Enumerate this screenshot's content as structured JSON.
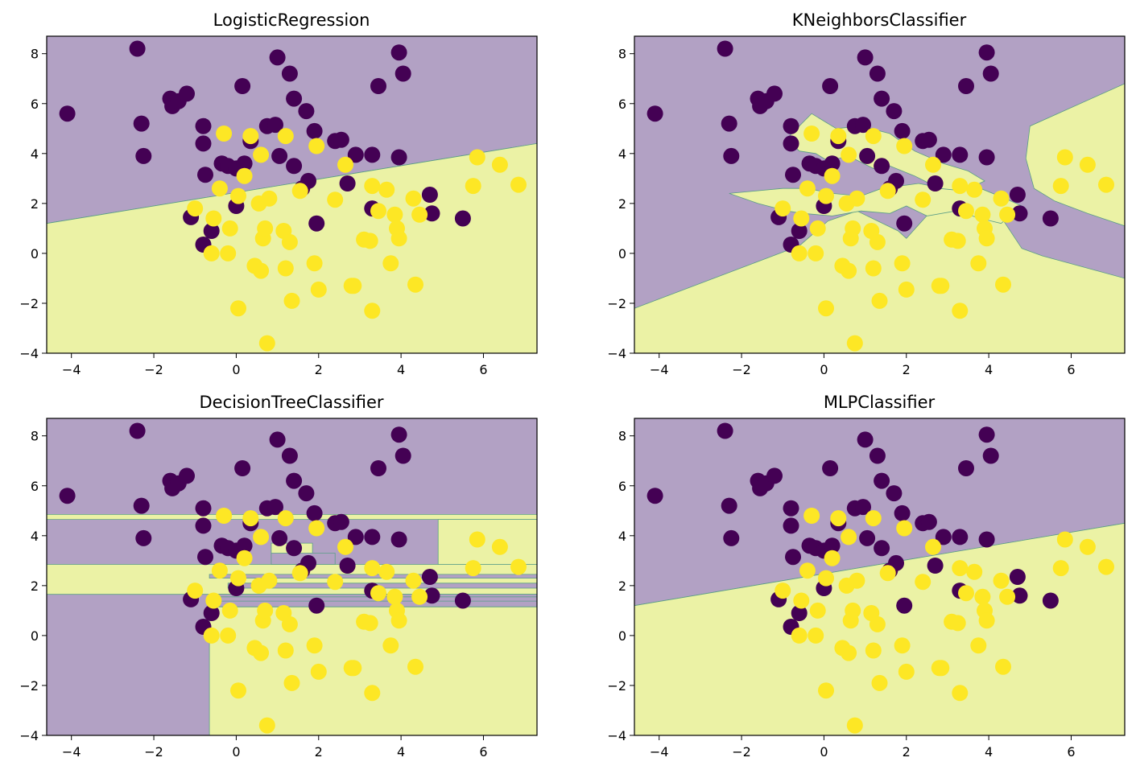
{
  "chart_data": [
    {
      "type": "scatter",
      "title": "LogisticRegression",
      "xlabel": "",
      "ylabel": "",
      "xlim": [
        -4.6,
        7.3
      ],
      "ylim": [
        -4.0,
        8.7
      ],
      "xticks": [
        -4,
        -2,
        0,
        2,
        4,
        6
      ],
      "yticks": [
        -4,
        -2,
        0,
        2,
        4,
        6,
        8
      ],
      "xtick_labels": [
        "−4",
        "−2",
        "0",
        "2",
        "4",
        "6"
      ],
      "ytick_labels": [
        "−4",
        "−2",
        "0",
        "2",
        "4",
        "6",
        "8"
      ],
      "decision_regions": [
        {
          "class": 0,
          "polygon": [
            [
              -4.6,
              1.2
            ],
            [
              7.3,
              4.4
            ],
            [
              7.3,
              8.7
            ],
            [
              -4.6,
              8.7
            ]
          ]
        },
        {
          "class": 1,
          "polygon": [
            [
              -4.6,
              -4.0
            ],
            [
              7.3,
              -4.0
            ],
            [
              7.3,
              4.4
            ],
            [
              -4.6,
              1.2
            ]
          ]
        }
      ]
    },
    {
      "type": "scatter",
      "title": "KNeighborsClassifier",
      "xlabel": "",
      "ylabel": "",
      "xlim": [
        -4.6,
        7.3
      ],
      "ylim": [
        -4.0,
        8.7
      ],
      "xticks": [
        -4,
        -2,
        0,
        2,
        4,
        6
      ],
      "yticks": [
        -4,
        -2,
        0,
        2,
        4,
        6,
        8
      ],
      "xtick_labels": [
        "−4",
        "−2",
        "0",
        "2",
        "4",
        "6"
      ],
      "ytick_labels": [
        "−4",
        "−2",
        "0",
        "2",
        "4",
        "6",
        "8"
      ],
      "decision_regions": [
        {
          "class": 0,
          "polygon": [
            [
              -4.6,
              -4.0
            ],
            [
              7.3,
              -4.0
            ],
            [
              7.3,
              8.7
            ],
            [
              -4.6,
              8.7
            ]
          ]
        },
        {
          "class": 1,
          "polygon": [
            [
              -4.6,
              -4.0
            ],
            [
              7.3,
              -4.0
            ],
            [
              7.3,
              -1.0
            ],
            [
              5.3,
              -0.1
            ],
            [
              4.8,
              0.2
            ],
            [
              4.2,
              1.7
            ],
            [
              3.9,
              2.3
            ],
            [
              3.2,
              2.0
            ],
            [
              2.6,
              1.7
            ],
            [
              2.0,
              0.6
            ],
            [
              1.8,
              0.9
            ],
            [
              0.8,
              1.7
            ],
            [
              0.1,
              1.3
            ],
            [
              -0.6,
              0.3
            ],
            [
              -4.6,
              -2.2
            ]
          ]
        },
        {
          "class": 1,
          "polygon": [
            [
              -2.3,
              2.4
            ],
            [
              -1.0,
              2.6
            ],
            [
              -0.4,
              2.6
            ],
            [
              0.2,
              2.4
            ],
            [
              0.9,
              2.3
            ],
            [
              1.4,
              2.6
            ],
            [
              2.3,
              2.8
            ],
            [
              2.9,
              2.6
            ],
            [
              3.8,
              2.6
            ],
            [
              4.4,
              2.2
            ],
            [
              4.8,
              1.9
            ],
            [
              4.3,
              1.2
            ],
            [
              3.8,
              1.4
            ],
            [
              3.2,
              1.7
            ],
            [
              2.5,
              1.5
            ],
            [
              2.0,
              1.9
            ],
            [
              1.6,
              1.6
            ],
            [
              0.9,
              1.7
            ],
            [
              0.2,
              1.5
            ],
            [
              -0.5,
              1.6
            ],
            [
              -0.9,
              1.7
            ],
            [
              -1.6,
              2.0
            ]
          ]
        },
        {
          "class": 1,
          "polygon": [
            [
              -0.9,
              4.6
            ],
            [
              -0.3,
              5.6
            ],
            [
              0.3,
              5.0
            ],
            [
              0.9,
              5.1
            ],
            [
              1.6,
              4.8
            ],
            [
              2.2,
              4.1
            ],
            [
              2.9,
              3.6
            ],
            [
              3.5,
              3.3
            ],
            [
              3.9,
              2.9
            ],
            [
              3.4,
              2.5
            ],
            [
              2.8,
              2.6
            ],
            [
              2.2,
              3.1
            ],
            [
              1.6,
              3.5
            ],
            [
              1.2,
              3.4
            ],
            [
              0.6,
              3.9
            ],
            [
              0.1,
              3.7
            ],
            [
              -0.2,
              4.0
            ],
            [
              -0.6,
              4.1
            ]
          ]
        },
        {
          "class": 1,
          "polygon": [
            [
              4.9,
              3.8
            ],
            [
              5.0,
              5.1
            ],
            [
              7.3,
              6.8
            ],
            [
              7.3,
              1.1
            ],
            [
              6.4,
              1.6
            ],
            [
              5.6,
              2.1
            ],
            [
              5.1,
              2.6
            ]
          ]
        }
      ]
    },
    {
      "type": "scatter",
      "title": "DecisionTreeClassifier",
      "xlabel": "",
      "ylabel": "",
      "xlim": [
        -4.6,
        7.3
      ],
      "ylim": [
        -4.0,
        8.7
      ],
      "xticks": [
        -4,
        -2,
        0,
        2,
        4,
        6
      ],
      "yticks": [
        -4,
        -2,
        0,
        2,
        4,
        6,
        8
      ],
      "xtick_labels": [
        "−4",
        "−2",
        "0",
        "2",
        "4",
        "6"
      ],
      "ytick_labels": [
        "−4",
        "−2",
        "0",
        "2",
        "4",
        "6",
        "8"
      ],
      "decision_regions": [
        {
          "class": 0,
          "polygon": [
            [
              -4.6,
              -4.0
            ],
            [
              7.3,
              -4.0
            ],
            [
              7.3,
              8.7
            ],
            [
              -4.6,
              8.7
            ]
          ]
        },
        {
          "class": 1,
          "polygon": [
            [
              -4.6,
              4.65
            ],
            [
              7.3,
              4.65
            ],
            [
              7.3,
              4.85
            ],
            [
              -4.6,
              4.85
            ]
          ]
        },
        {
          "class": 1,
          "polygon": [
            [
              -4.6,
              1.65
            ],
            [
              7.3,
              1.65
            ],
            [
              7.3,
              2.85
            ],
            [
              -4.6,
              2.85
            ]
          ]
        },
        {
          "class": 1,
          "polygon": [
            [
              4.9,
              2.85
            ],
            [
              7.3,
              2.85
            ],
            [
              7.3,
              4.65
            ],
            [
              4.9,
              4.65
            ]
          ]
        },
        {
          "class": 1,
          "polygon": [
            [
              -0.65,
              -4.0
            ],
            [
              7.3,
              -4.0
            ],
            [
              7.3,
              1.15
            ],
            [
              -0.65,
              1.15
            ]
          ]
        },
        {
          "class": 1,
          "polygon": [
            [
              0.85,
              2.85
            ],
            [
              1.85,
              2.85
            ],
            [
              1.85,
              3.7
            ],
            [
              0.85,
              3.7
            ]
          ]
        },
        {
          "class": 0,
          "polygon": [
            [
              0.85,
              2.85
            ],
            [
              2.4,
              2.85
            ],
            [
              2.4,
              3.3
            ],
            [
              0.85,
              3.3
            ]
          ]
        },
        {
          "class": 0,
          "polygon": [
            [
              -0.65,
              1.15
            ],
            [
              7.3,
              1.15
            ],
            [
              7.3,
              1.38
            ],
            [
              -0.65,
              1.38
            ]
          ]
        },
        {
          "class": 0,
          "polygon": [
            [
              -0.65,
              1.55
            ],
            [
              7.3,
              1.55
            ],
            [
              7.3,
              1.65
            ],
            [
              -0.65,
              1.65
            ]
          ]
        },
        {
          "class": 0,
          "polygon": [
            [
              -0.2,
              1.9
            ],
            [
              7.3,
              1.9
            ],
            [
              7.3,
              2.1
            ],
            [
              -0.2,
              2.1
            ]
          ]
        },
        {
          "class": 0,
          "polygon": [
            [
              -0.65,
              2.3
            ],
            [
              7.3,
              2.3
            ],
            [
              7.3,
              2.45
            ],
            [
              -0.65,
              2.45
            ]
          ]
        }
      ]
    },
    {
      "type": "scatter",
      "title": "MLPClassifier",
      "xlabel": "",
      "ylabel": "",
      "xlim": [
        -4.6,
        7.3
      ],
      "ylim": [
        -4.0,
        8.7
      ],
      "xticks": [
        -4,
        -2,
        0,
        2,
        4,
        6
      ],
      "yticks": [
        -4,
        -2,
        0,
        2,
        4,
        6,
        8
      ],
      "xtick_labels": [
        "−4",
        "−2",
        "0",
        "2",
        "4",
        "6"
      ],
      "ytick_labels": [
        "−4",
        "−2",
        "0",
        "2",
        "4",
        "6",
        "8"
      ],
      "decision_regions": [
        {
          "class": 0,
          "polygon": [
            [
              -4.6,
              1.2
            ],
            [
              7.3,
              4.5
            ],
            [
              7.3,
              8.7
            ],
            [
              -4.6,
              8.7
            ]
          ]
        },
        {
          "class": 1,
          "polygon": [
            [
              -4.6,
              -4.0
            ],
            [
              7.3,
              -4.0
            ],
            [
              7.3,
              4.5
            ],
            [
              -4.6,
              1.2
            ]
          ]
        }
      ]
    }
  ],
  "colors": {
    "class_0_point": "#440154",
    "class_1_point": "#fde725",
    "class_0_region": "#b2a1c4",
    "class_1_region": "#ebf2a5",
    "boundary": "#5b9e86"
  },
  "points": {
    "class_0": [
      [
        -4.1,
        5.6
      ],
      [
        -2.4,
        8.2
      ],
      [
        -2.3,
        5.2
      ],
      [
        -2.25,
        3.9
      ],
      [
        -1.6,
        6.2
      ],
      [
        -1.55,
        5.9
      ],
      [
        -1.4,
        6.1
      ],
      [
        -1.2,
        6.4
      ],
      [
        -1.1,
        1.45
      ],
      [
        -0.8,
        5.1
      ],
      [
        -0.8,
        4.4
      ],
      [
        -0.75,
        3.15
      ],
      [
        -0.8,
        0.35
      ],
      [
        -0.6,
        0.9
      ],
      [
        -0.35,
        3.6
      ],
      [
        -0.2,
        3.5
      ],
      [
        0.0,
        1.9
      ],
      [
        0.0,
        3.4
      ],
      [
        0.15,
        6.7
      ],
      [
        0.2,
        3.6
      ],
      [
        0.35,
        4.5
      ],
      [
        0.75,
        5.1
      ],
      [
        0.95,
        5.15
      ],
      [
        1.0,
        7.85
      ],
      [
        1.05,
        3.9
      ],
      [
        1.3,
        7.2
      ],
      [
        1.4,
        3.5
      ],
      [
        1.4,
        6.2
      ],
      [
        1.6,
        2.6
      ],
      [
        1.7,
        5.7
      ],
      [
        1.75,
        2.9
      ],
      [
        1.9,
        4.9
      ],
      [
        1.95,
        1.2
      ],
      [
        2.4,
        4.5
      ],
      [
        2.55,
        4.55
      ],
      [
        2.7,
        2.8
      ],
      [
        2.9,
        3.95
      ],
      [
        3.3,
        3.95
      ],
      [
        3.3,
        1.8
      ],
      [
        3.45,
        6.7
      ],
      [
        3.95,
        3.85
      ],
      [
        3.95,
        8.05
      ],
      [
        4.05,
        7.2
      ],
      [
        4.7,
        2.35
      ],
      [
        4.75,
        1.6
      ],
      [
        5.5,
        1.4
      ]
    ],
    "class_1": [
      [
        -1.0,
        1.8
      ],
      [
        -0.55,
        1.4
      ],
      [
        -0.6,
        0.0
      ],
      [
        -0.4,
        2.6
      ],
      [
        -0.3,
        4.8
      ],
      [
        -0.2,
        0.0
      ],
      [
        -0.15,
        1.0
      ],
      [
        0.05,
        2.3
      ],
      [
        0.05,
        -2.2
      ],
      [
        0.2,
        3.1
      ],
      [
        0.35,
        4.7
      ],
      [
        0.45,
        -0.5
      ],
      [
        0.55,
        2.0
      ],
      [
        0.6,
        -0.7
      ],
      [
        0.6,
        3.95
      ],
      [
        0.65,
        0.6
      ],
      [
        0.7,
        1.0
      ],
      [
        0.75,
        -3.6
      ],
      [
        0.8,
        2.2
      ],
      [
        1.15,
        0.9
      ],
      [
        1.2,
        -0.6
      ],
      [
        1.2,
        4.7
      ],
      [
        1.3,
        0.45
      ],
      [
        1.35,
        -1.9
      ],
      [
        1.55,
        2.5
      ],
      [
        1.9,
        -0.4
      ],
      [
        1.95,
        4.3
      ],
      [
        2.0,
        -1.45
      ],
      [
        2.4,
        2.15
      ],
      [
        2.65,
        3.55
      ],
      [
        2.8,
        -1.3
      ],
      [
        2.85,
        -1.3
      ],
      [
        3.1,
        0.55
      ],
      [
        3.25,
        0.5
      ],
      [
        3.3,
        2.7
      ],
      [
        3.3,
        -2.3
      ],
      [
        3.45,
        1.7
      ],
      [
        3.65,
        2.55
      ],
      [
        3.75,
        -0.4
      ],
      [
        3.85,
        1.55
      ],
      [
        3.9,
        1.0
      ],
      [
        3.95,
        0.6
      ],
      [
        4.35,
        -1.25
      ],
      [
        4.3,
        2.2
      ],
      [
        4.45,
        1.55
      ],
      [
        5.75,
        2.7
      ],
      [
        5.85,
        3.85
      ],
      [
        6.4,
        3.55
      ],
      [
        6.85,
        2.75
      ]
    ]
  }
}
